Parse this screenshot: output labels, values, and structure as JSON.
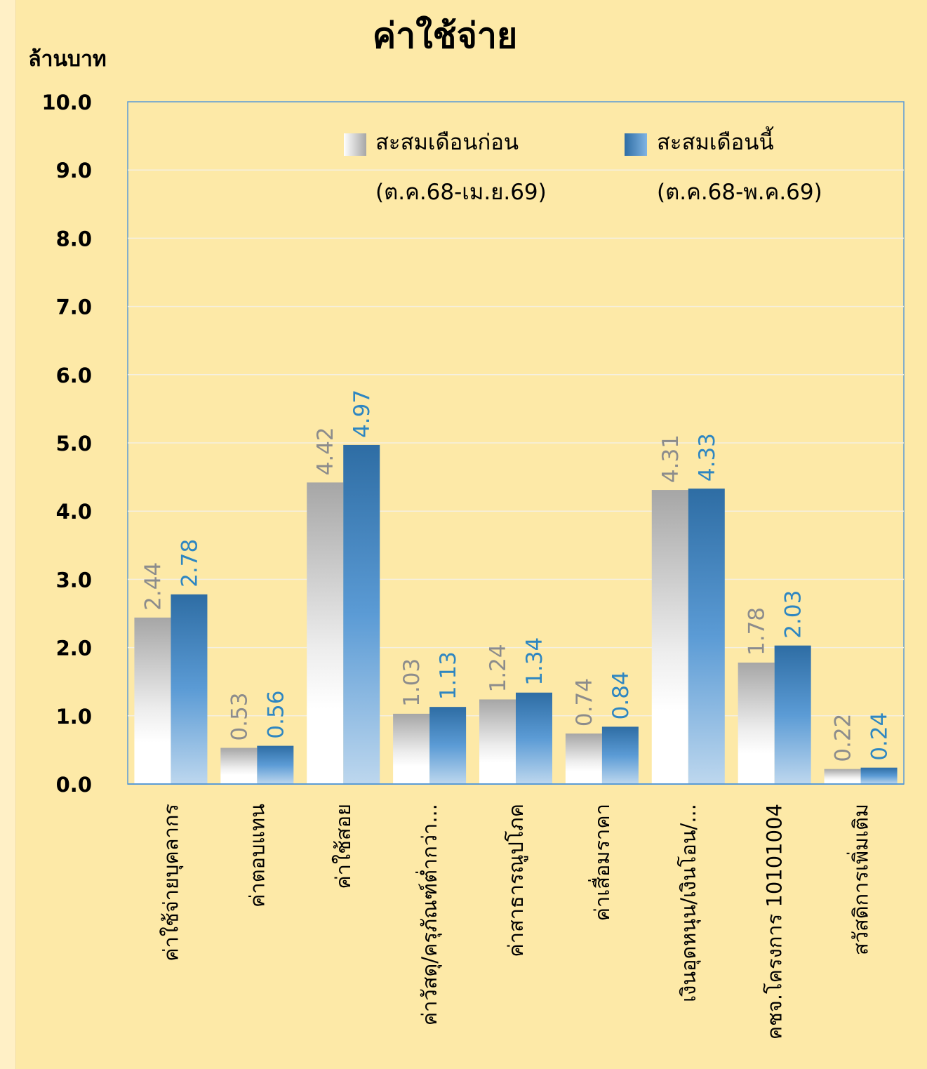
{
  "chart_data": {
    "type": "bar",
    "title": "ค่าใช้จ่าย",
    "ylabel": "ล้านบาท",
    "xlabel": "",
    "ylim": [
      0,
      10
    ],
    "yticks": [
      "0.0",
      "1.0",
      "2.0",
      "3.0",
      "4.0",
      "5.0",
      "6.0",
      "7.0",
      "8.0",
      "9.0",
      "10.0"
    ],
    "categories": [
      "ค่าใช้จ่ายบุคลากร",
      "ค่าตอบแทน",
      "ค่าใช้สอย",
      "ค่าวัสดุ/ครุภัณฑ์ต่ำกว่า...",
      "ค่าสาธารณูปโภค",
      "ค่าเสื่อมราคา",
      "เงินอุดหนุน/เงินโอน/...",
      "คชจ.โครงการ 10101004",
      "สวัสดิการเพิ่มเติม"
    ],
    "series": [
      {
        "name": "สะสมเดือนก่อน",
        "period": "(ต.ค.68-เม.ย.69)",
        "values": [
          2.44,
          0.53,
          4.42,
          1.03,
          1.24,
          0.74,
          4.31,
          1.78,
          0.22
        ],
        "labels": [
          "2.44",
          "0.53",
          "4.42",
          "1.03",
          "1.24",
          "0.74",
          "4.31",
          "1.78",
          "0.22"
        ]
      },
      {
        "name": "สะสมเดือนนี้",
        "period": "(ต.ค.68-พ.ค.69)",
        "values": [
          2.78,
          0.56,
          4.97,
          1.13,
          1.34,
          0.84,
          4.33,
          2.03,
          0.24
        ],
        "labels": [
          "2.78",
          "0.56",
          "4.97",
          "1.13",
          "1.34",
          "0.84",
          "4.33",
          "2.03",
          "0.24"
        ]
      }
    ],
    "grid": true,
    "legend_position": "top-right",
    "colors": {
      "background": "#FDE9A7",
      "series_prev_top": "#A6A6A6",
      "series_prev_bottom": "#FFFFFF",
      "series_curr_top": "#2E6DA4",
      "series_curr_mid": "#5B9BD5",
      "series_curr_bottom": "#BDD7EE",
      "grid": "#F3F3F3",
      "axis": "#5B9BD5",
      "label_prev": "#8C8C8C",
      "label_curr": "#2E86C1"
    }
  }
}
